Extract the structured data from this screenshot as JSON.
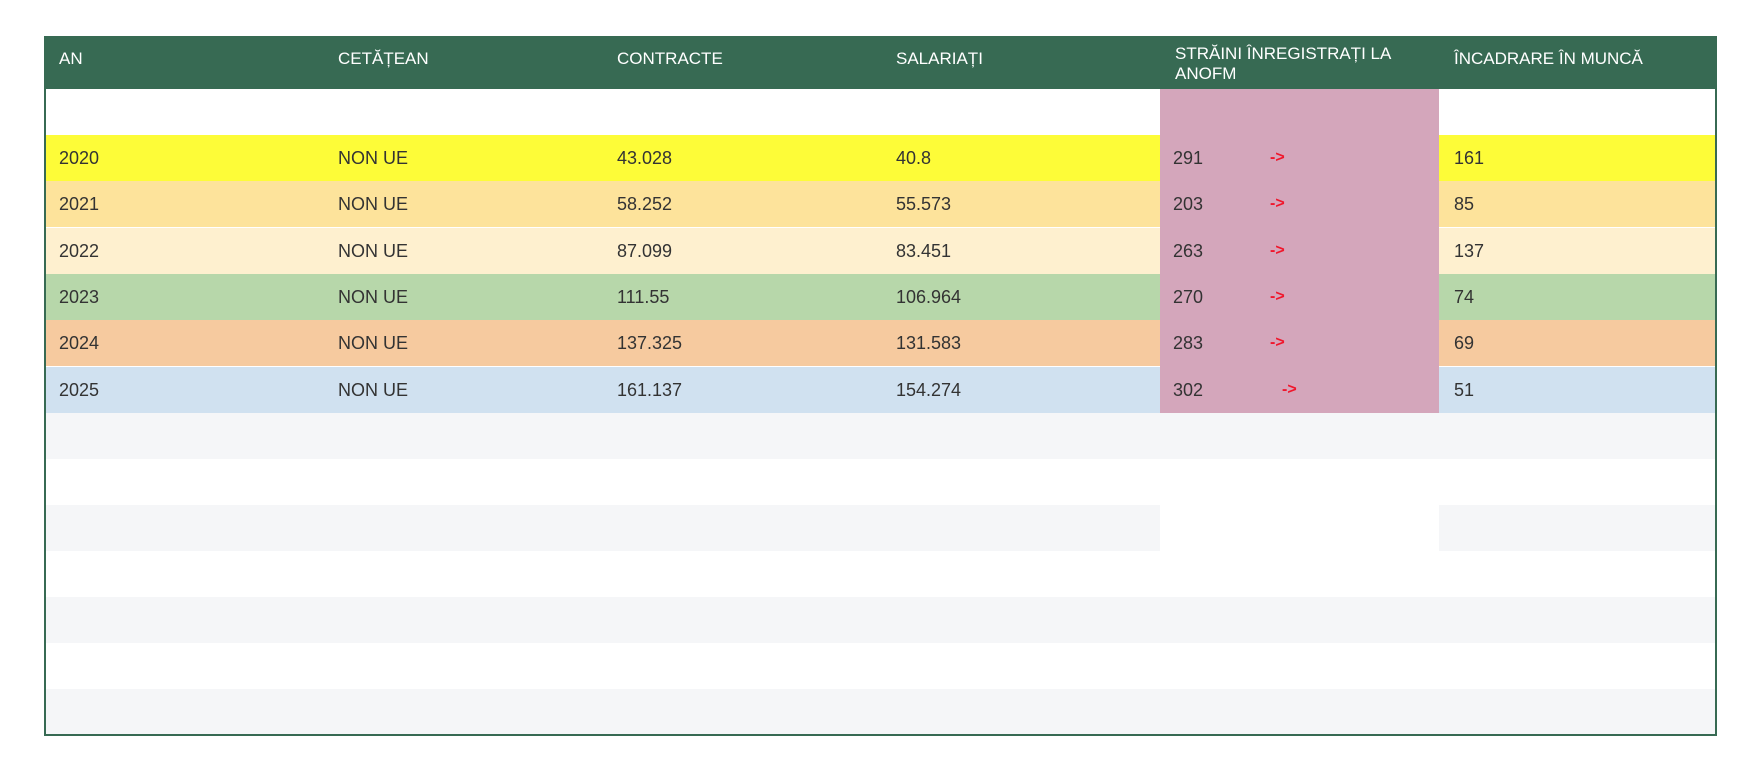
{
  "headers": [
    "AN",
    "CETĂȚEAN",
    "CONTRACTE",
    "SALARIAȚI",
    "STRĂINI ÎNREGISTRAȚI LA ANOFM",
    "ÎNCADRARE ÎN MUNCĂ"
  ],
  "arrow": "->",
  "rows": [
    {
      "an": "2020",
      "cetatean": "NON UE",
      "contracte": "43.028",
      "salariati": "40.8",
      "straini": "291",
      "incadrare": "161",
      "color": "#fdfc38"
    },
    {
      "an": "2021",
      "cetatean": "NON UE",
      "contracte": "58.252",
      "salariati": "55.573",
      "straini": "203",
      "incadrare": "85",
      "color": "#fde39b"
    },
    {
      "an": "2022",
      "cetatean": "NON UE",
      "contracte": "87.099",
      "salariati": "83.451",
      "straini": "263",
      "incadrare": "137",
      "color": "#fef0cf"
    },
    {
      "an": "2023",
      "cetatean": "NON UE",
      "contracte": "111.55",
      "salariati": "106.964",
      "straini": "270",
      "incadrare": "74",
      "color": "#b7d7aa"
    },
    {
      "an": "2024",
      "cetatean": "NON UE",
      "contracte": "137.325",
      "salariati": "131.583",
      "straini": "283",
      "incadrare": "69",
      "color": "#f6ca9f"
    },
    {
      "an": "2025",
      "cetatean": "NON UE",
      "contracte": "161.137",
      "salariati": "154.274",
      "straini": "302",
      "incadrare": "51",
      "color": "#d0e1f0"
    }
  ],
  "colors": {
    "header": "#376a53",
    "highlight_column": "#d4a6bb",
    "stripe": "#f5f6f8",
    "arrow": "#f0162b"
  }
}
